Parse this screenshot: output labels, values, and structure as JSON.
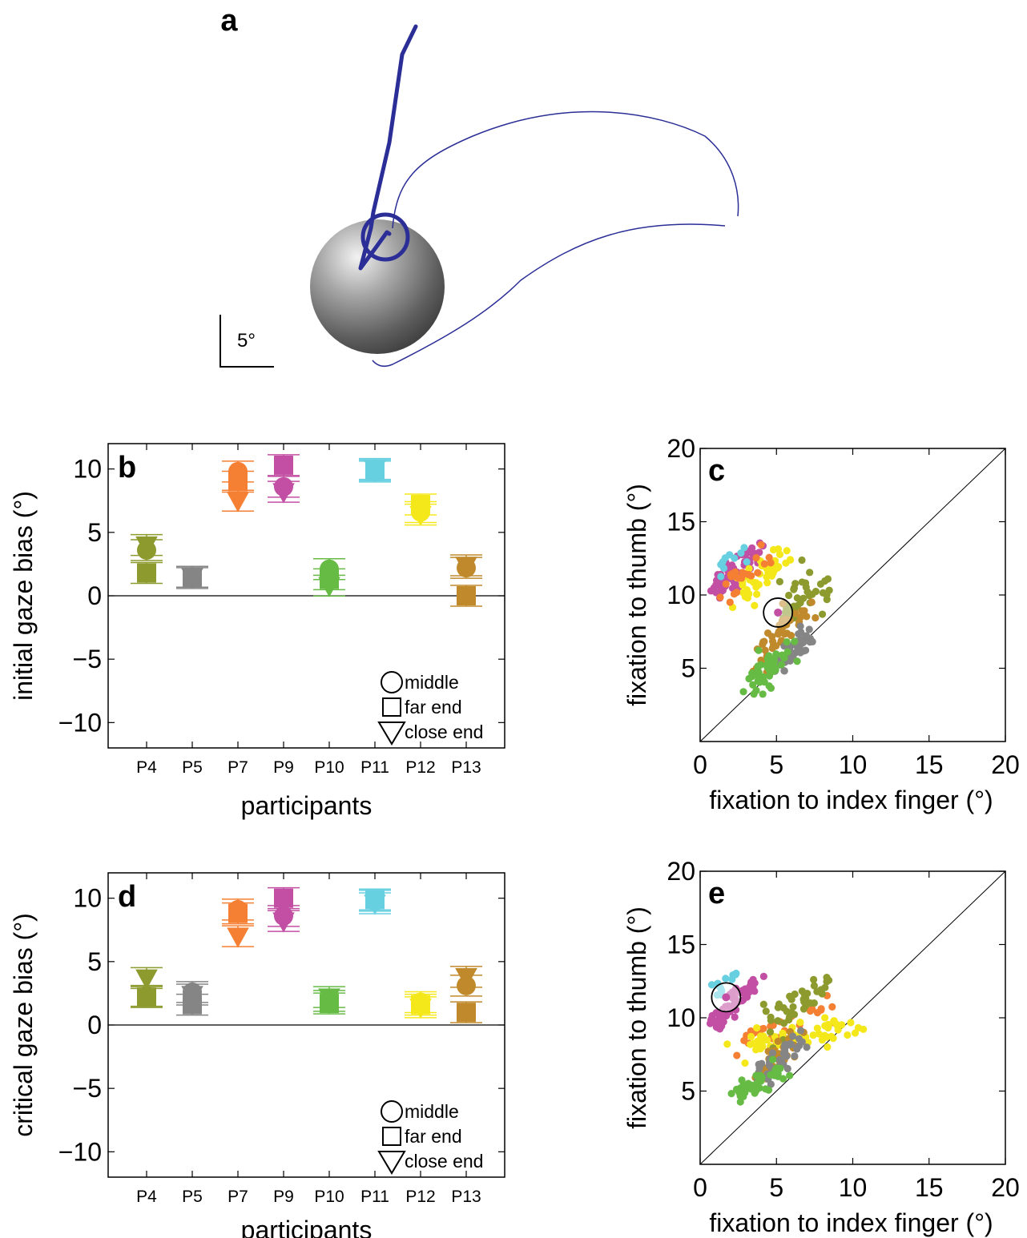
{
  "panels": {
    "a": {
      "letter": "a",
      "scale_label": "5°"
    },
    "b": {
      "letter": "b"
    },
    "c": {
      "letter": "c"
    },
    "d": {
      "letter": "d"
    },
    "e": {
      "letter": "e"
    }
  },
  "colors": {
    "P4": "#8c9a2e",
    "P5": "#858585",
    "P7": "#f57f32",
    "P9": "#c24fa3",
    "P10": "#66bb44",
    "P11": "#66cfe0",
    "P12": "#f5e81a",
    "P13": "#c08a2c",
    "trace_blue": "#2a2e96"
  },
  "chart_data": [
    {
      "id": "b",
      "type": "scatter",
      "title": "",
      "xlabel": "participants",
      "ylabel": "initial gaze bias (°)",
      "ylim": [
        -12,
        12
      ],
      "yticks": [
        10,
        5,
        0,
        -5,
        -10
      ],
      "ytick_labels": [
        "10",
        "5",
        "0",
        "−5",
        "−10"
      ],
      "categories": [
        "P4",
        "P5",
        "P7",
        "P9",
        "P10",
        "P11",
        "P12",
        "P13"
      ],
      "legend": [
        "middle",
        "far end",
        "close end"
      ],
      "legend_position": "bottom-right",
      "series": [
        {
          "name": "middle",
          "marker": "circle",
          "values": [
            3.6,
            1.5,
            9.8,
            8.6,
            2.1,
            9.8,
            6.6,
            2.2
          ]
        },
        {
          "name": "far end",
          "marker": "square",
          "values": [
            1.8,
            1.4,
            9.0,
            10.3,
            1.3,
            9.9,
            7.2,
            0.0
          ]
        },
        {
          "name": "close end",
          "marker": "triangle",
          "values": [
            4.0,
            1.5,
            7.5,
            8.2,
            0.8,
            10.0,
            6.4,
            2.4
          ]
        }
      ]
    },
    {
      "id": "c",
      "type": "scatter",
      "xlabel": "fixation to index finger (°)",
      "ylabel": "fixation to thumb (°)",
      "xlim": [
        0,
        20
      ],
      "ylim": [
        0,
        20
      ],
      "xticks": [
        0,
        5,
        10,
        15,
        20
      ],
      "xtick_labels": [
        "0",
        "5",
        "10",
        "15",
        "20"
      ],
      "yticks": [
        5,
        10,
        15,
        20
      ],
      "ytick_labels": [
        "5",
        "10",
        "15",
        "20"
      ],
      "diagonal": true,
      "mean_marker": [
        5.1,
        8.8
      ]
    },
    {
      "id": "d",
      "type": "scatter",
      "title": "",
      "xlabel": "participants",
      "ylabel": "critical gaze bias (°)",
      "ylim": [
        -12,
        12
      ],
      "yticks": [
        10,
        5,
        0,
        -5,
        -10
      ],
      "ytick_labels": [
        "10",
        "5",
        "0",
        "−5",
        "−10"
      ],
      "categories": [
        "P4",
        "P5",
        "P7",
        "P9",
        "P10",
        "P11",
        "P12",
        "P13"
      ],
      "legend": [
        "middle",
        "far end",
        "close end"
      ],
      "legend_position": "bottom-right",
      "series": [
        {
          "name": "middle",
          "marker": "circle",
          "values": [
            2.3,
            2.6,
            9.1,
            8.6,
            1.9,
            9.8,
            1.8,
            3.1
          ]
        },
        {
          "name": "far end",
          "marker": "square",
          "values": [
            2.2,
            1.6,
            8.8,
            10.0,
            1.7,
            9.9,
            1.6,
            1.0
          ]
        },
        {
          "name": "close end",
          "marker": "triangle",
          "values": [
            3.7,
            2.4,
            7.0,
            8.2,
            2.2,
            9.6,
            1.4,
            3.8
          ]
        }
      ]
    },
    {
      "id": "e",
      "type": "scatter",
      "xlabel": "fixation to index finger (°)",
      "ylabel": "fixation to thumb (°)",
      "xlim": [
        0,
        20
      ],
      "ylim": [
        0,
        20
      ],
      "xticks": [
        0,
        5,
        10,
        15,
        20
      ],
      "xtick_labels": [
        "0",
        "5",
        "10",
        "15",
        "20"
      ],
      "yticks": [
        5,
        10,
        15,
        20
      ],
      "ytick_labels": [
        "5",
        "10",
        "15",
        "20"
      ],
      "diagonal": true,
      "mean_marker": [
        1.7,
        11.4
      ]
    }
  ]
}
